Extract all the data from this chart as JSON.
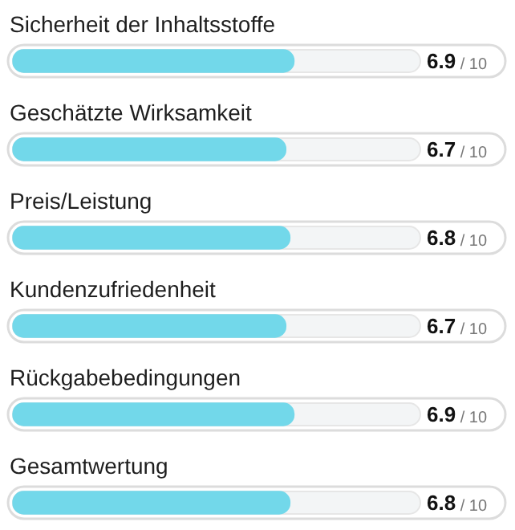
{
  "chart_data": {
    "type": "bar",
    "orientation": "horizontal",
    "categories": [
      "Sicherheit der Inhaltsstoffe",
      "Geschätzte Wirksamkeit",
      "Preis/Leistung",
      "Kundenzufriedenheit",
      "Rückgabebedingungen",
      "Gesamtwertung"
    ],
    "values": [
      6.9,
      6.7,
      6.8,
      6.7,
      6.9,
      6.8
    ],
    "data_labels": true,
    "annotations": [
      "/ 10",
      "/ 10",
      "/ 10",
      "/ 10",
      "/ 10",
      "/ 10"
    ],
    "color": "#72d8ea",
    "xlim": [
      0,
      10
    ],
    "tick_labels": false,
    "legend": false
  }
}
